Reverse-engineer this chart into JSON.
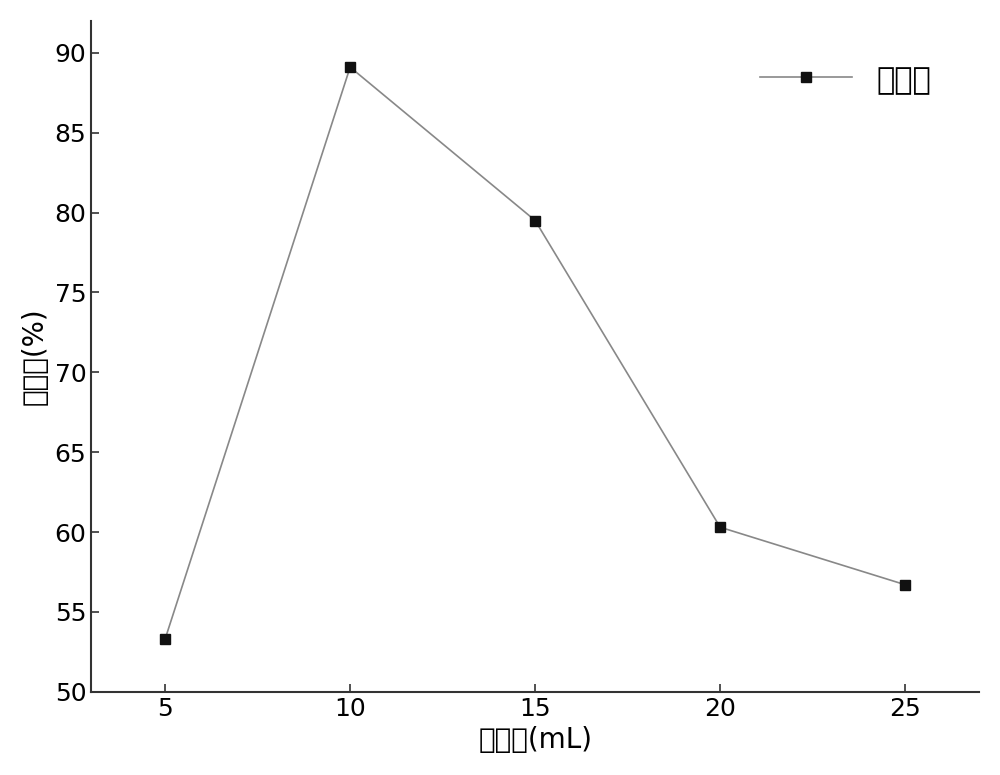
{
  "x": [
    5,
    10,
    15,
    20,
    25
  ],
  "y": [
    53.3,
    89.1,
    79.5,
    60.3,
    56.7
  ],
  "xlabel": "投加量(mL)",
  "ylabel": "絢凝率(%)",
  "legend_label": "絢凝率",
  "xlim": [
    3,
    27
  ],
  "ylim": [
    50,
    92
  ],
  "yticks": [
    50,
    55,
    60,
    65,
    70,
    75,
    80,
    85,
    90
  ],
  "xticks": [
    5,
    10,
    15,
    20,
    25
  ],
  "line_color": "#888888",
  "marker_color": "#111111",
  "marker": "s",
  "marker_size": 7,
  "line_width": 1.2,
  "background_color": "#ffffff",
  "axes_background": "#ffffff",
  "xlabel_fontsize": 20,
  "ylabel_fontsize": 20,
  "tick_fontsize": 18,
  "legend_fontsize": 22
}
